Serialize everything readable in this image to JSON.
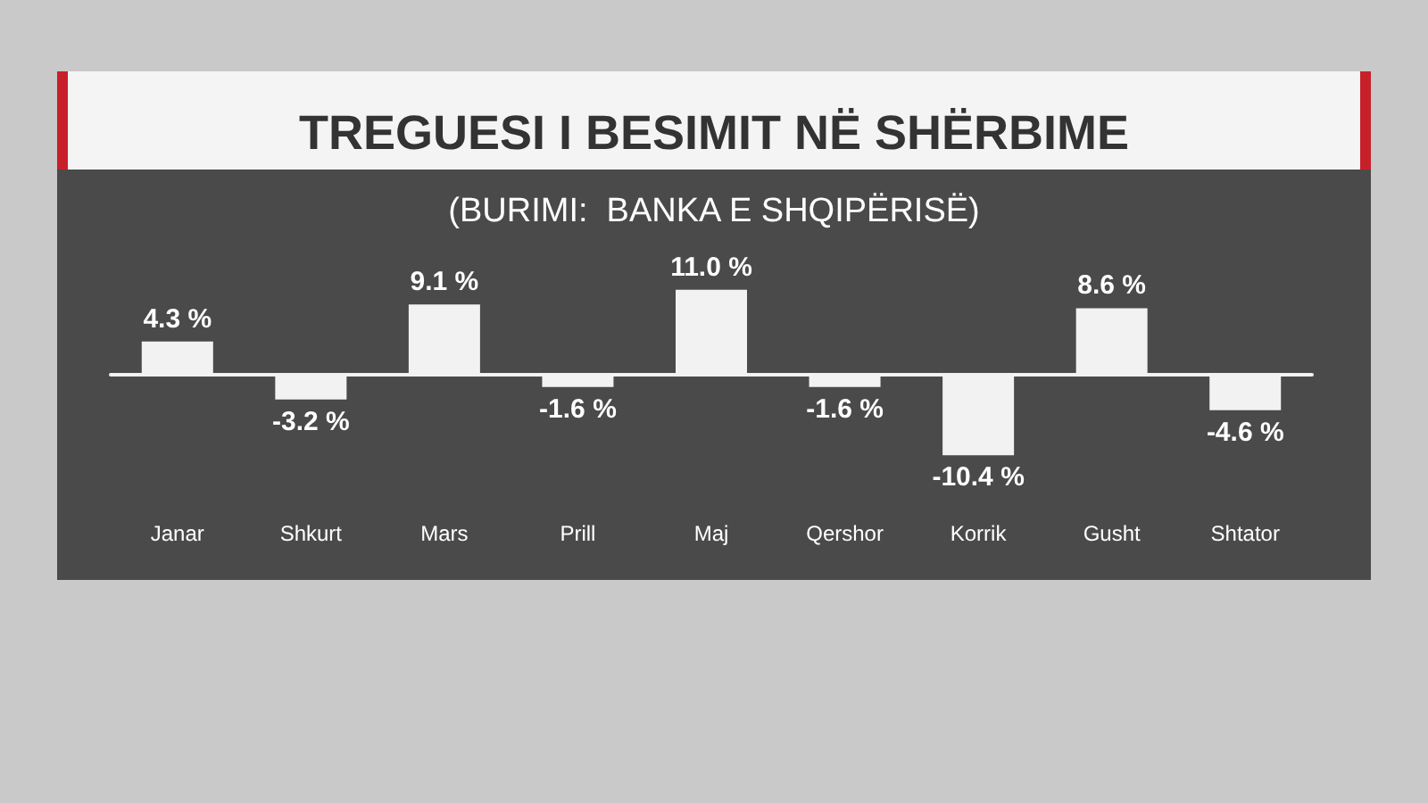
{
  "chart_data": {
    "type": "bar",
    "title": "TREGUESI I BESIMIT NË SHËRBIME",
    "subtitle": "(BURIMI:  BANKA E SHQIPËRISË)",
    "categories": [
      "Janar",
      "Shkurt",
      "Mars",
      "Prill",
      "Maj",
      "Qershor",
      "Korrik",
      "Gusht",
      "Shtator"
    ],
    "values": [
      4.3,
      -3.2,
      9.1,
      -1.6,
      11.0,
      -1.6,
      -10.4,
      8.6,
      -4.6
    ],
    "value_labels": [
      "4.3 %",
      "-3.2 %",
      "9.1 %",
      "-1.6 %",
      "11.0 %",
      "-1.6 %",
      "-10.4 %",
      "8.6 %",
      "-4.6 %"
    ],
    "color": "#f2f2f2"
  }
}
